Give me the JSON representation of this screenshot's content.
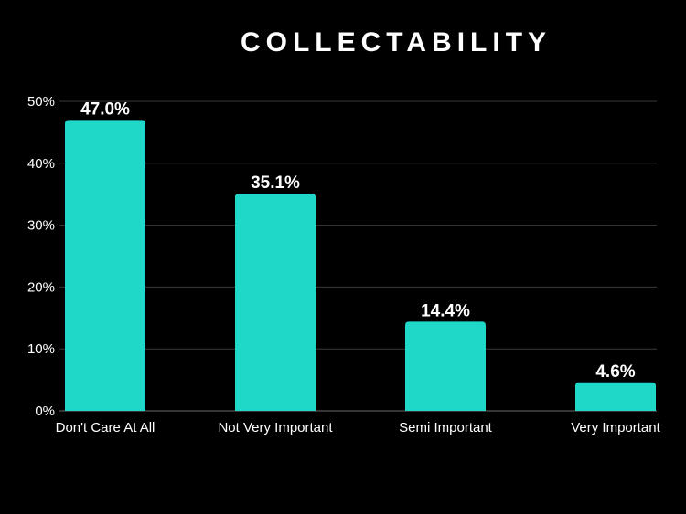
{
  "chart_data": {
    "type": "bar",
    "title": "COLLECTABILITY",
    "xlabel": "",
    "ylabel": "",
    "categories": [
      "Don't Care At All",
      "Not Very Important",
      "Semi Important",
      "Very Important"
    ],
    "values": [
      47.0,
      35.1,
      14.4,
      4.6
    ],
    "value_labels": [
      "47.0%",
      "35.1%",
      "14.4%",
      "4.6%"
    ],
    "yticks": [
      0,
      10,
      20,
      30,
      40,
      50
    ],
    "ytick_labels": [
      "0%",
      "10%",
      "20%",
      "30%",
      "40%",
      "50%"
    ],
    "ylim": [
      0,
      50
    ],
    "grid": true,
    "legend": "none",
    "colors": {
      "bar": "#1fd8c8",
      "background": "#000000",
      "grid": "#3a3a3a",
      "text": "#ffffff"
    }
  }
}
